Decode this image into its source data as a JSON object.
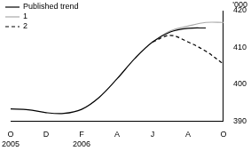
{
  "chart_data": {
    "type": "line",
    "y_label": "'000",
    "categories": [
      "O\n2005",
      null,
      "D",
      null,
      "F\n2006",
      null,
      "A",
      null,
      "J",
      null,
      "A",
      null,
      "O"
    ],
    "series": [
      {
        "name": "Published trend",
        "color": "#000000",
        "line_style": "solid",
        "values": [
          393.3,
          393.1,
          392.3,
          392.1,
          393.2,
          396.5,
          401.5,
          407.0,
          411.5,
          414.2,
          415.2,
          415.3,
          null
        ]
      },
      {
        "name": "1",
        "color": "#aaaaaa",
        "line_style": "solid",
        "values": [
          null,
          null,
          null,
          null,
          null,
          null,
          null,
          null,
          411.5,
          414.5,
          415.8,
          416.8,
          416.8
        ]
      },
      {
        "name": "2",
        "color": "#000000",
        "line_style": "dashed",
        "values": [
          null,
          null,
          null,
          null,
          null,
          null,
          null,
          null,
          411.5,
          413.3,
          411.5,
          409.0,
          405.5
        ]
      }
    ],
    "ylim": [
      390,
      420
    ],
    "yticks": [
      390,
      400,
      410,
      420
    ],
    "grid": false,
    "legend": "top-left"
  }
}
